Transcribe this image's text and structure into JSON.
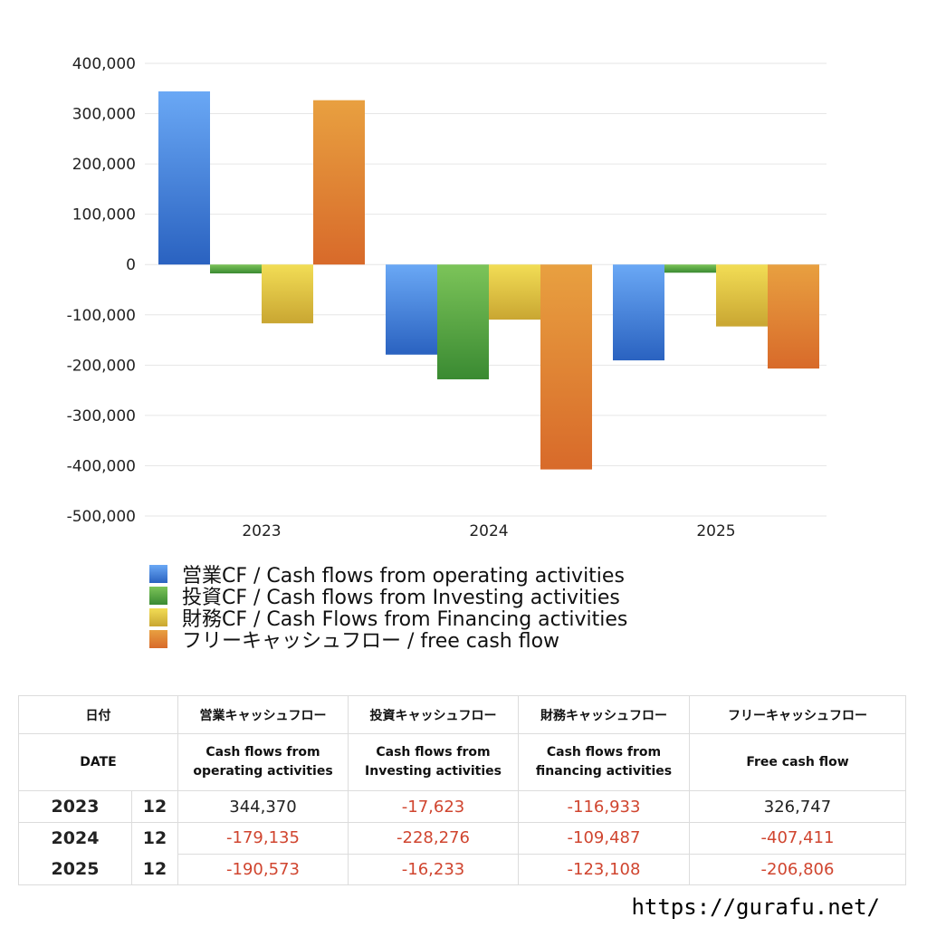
{
  "chart_data": {
    "type": "bar",
    "categories": [
      "2023",
      "2024",
      "2025"
    ],
    "ylim": [
      -500000,
      400000
    ],
    "yticks": [
      400000,
      300000,
      200000,
      100000,
      0,
      -100000,
      -200000,
      -300000,
      -400000,
      -500000
    ],
    "ytick_labels": [
      "400,000",
      "300,000",
      "200,000",
      "100,000",
      "0",
      "-100,000",
      "-200,000",
      "-300,000",
      "-400,000",
      "-500,000"
    ],
    "grid": true,
    "legend_position": "bottom-left",
    "series": [
      {
        "name": "営業CF / Cash flows from operating activities",
        "values": [
          344370,
          -179135,
          -190573
        ],
        "color": "#3d7fe0"
      },
      {
        "name": "投資CF / Cash flows from Investing activities",
        "values": [
          -17623,
          -228276,
          -16233
        ],
        "color": "#4a9e3c"
      },
      {
        "name": "財務CF / Cash Flows from Financing activities",
        "values": [
          -116933,
          -109487,
          -123108
        ],
        "color": "#e0c43a"
      },
      {
        "name": "フリーキャッシュフロー / free cash flow",
        "values": [
          326747,
          -407411,
          -206806
        ],
        "color": "#e07a30"
      }
    ]
  },
  "table": {
    "header_row1": [
      "日付",
      "営業キャッシュフロー",
      "投資キャッシュフロー",
      "財務キャッシュフロー",
      "フリーキャッシュフロー"
    ],
    "header_row2": [
      "DATE",
      "Cash flows from\noperating activities",
      "Cash flows from\nInvesting activities",
      "Cash flows from\nfinancing activities",
      "Free cash flow"
    ],
    "rows": [
      {
        "year": "2023",
        "month": "12",
        "values": [
          "344,370",
          "-17,623",
          "-116,933",
          "326,747"
        ]
      },
      {
        "year": "2024",
        "month": "12",
        "values": [
          "-179,135",
          "-228,276",
          "-109,487",
          "-407,411"
        ]
      },
      {
        "year": "2025",
        "month": "12",
        "values": [
          "-190,573",
          "-16,233",
          "-123,108",
          "-206,806"
        ]
      }
    ]
  },
  "footer": {
    "url": "https://gurafu.net/"
  }
}
